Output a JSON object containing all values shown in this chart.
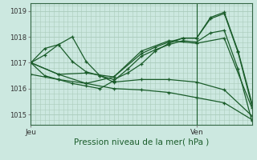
{
  "xlabel": "Pression niveau de la mer( hPa )",
  "bg_color": "#cce8e0",
  "grid_color": "#aaccbb",
  "line_color": "#1a5c2a",
  "ylim": [
    1014.6,
    1019.3
  ],
  "xlim": [
    0,
    48
  ],
  "xticks": [
    0,
    36
  ],
  "xtick_labels": [
    "Jeu",
    "Ven"
  ],
  "yticks": [
    1015,
    1016,
    1017,
    1018,
    1019
  ],
  "vline_x": 36,
  "series": [
    {
      "x": [
        0,
        3,
        6,
        9,
        12,
        15,
        18,
        21,
        24,
        27,
        30,
        33,
        36,
        39,
        42,
        45,
        48
      ],
      "y": [
        1017.0,
        1017.55,
        1017.7,
        1017.05,
        1016.65,
        1016.5,
        1016.35,
        1016.6,
        1016.95,
        1017.45,
        1017.75,
        1017.95,
        1017.95,
        1018.75,
        1018.95,
        1017.45,
        1015.45
      ]
    },
    {
      "x": [
        0,
        3,
        6,
        9,
        12,
        15,
        18,
        21,
        24,
        27,
        30,
        33,
        36,
        39,
        42,
        45,
        48
      ],
      "y": [
        1017.0,
        1016.5,
        1016.35,
        1016.2,
        1016.1,
        1016.0,
        1016.3,
        1016.75,
        1017.25,
        1017.5,
        1017.7,
        1017.85,
        1017.8,
        1018.15,
        1018.25,
        1016.75,
        1014.75
      ]
    },
    {
      "x": [
        0,
        6,
        12,
        18,
        24,
        27,
        30,
        33,
        36,
        39,
        42,
        45,
        48
      ],
      "y": [
        1017.0,
        1016.55,
        1016.2,
        1016.45,
        1017.35,
        1017.6,
        1017.8,
        1017.95,
        1017.95,
        1018.7,
        1018.9,
        1017.4,
        1015.35
      ]
    },
    {
      "x": [
        0,
        6,
        12,
        18,
        24,
        30,
        36,
        42,
        48
      ],
      "y": [
        1017.0,
        1016.55,
        1016.6,
        1016.45,
        1017.45,
        1017.85,
        1017.75,
        1017.95,
        1015.25
      ]
    },
    {
      "x": [
        0,
        3,
        6,
        9,
        12,
        15,
        18,
        24,
        30,
        36,
        42,
        48
      ],
      "y": [
        1017.0,
        1017.3,
        1017.7,
        1018.0,
        1017.05,
        1016.5,
        1016.25,
        1016.35,
        1016.35,
        1016.25,
        1015.95,
        1014.95
      ]
    },
    {
      "x": [
        0,
        6,
        12,
        18,
        24,
        30,
        36,
        42,
        48
      ],
      "y": [
        1016.55,
        1016.35,
        1016.2,
        1016.0,
        1015.95,
        1015.85,
        1015.65,
        1015.45,
        1014.8
      ]
    }
  ],
  "marker": "+",
  "markersize": 3.5,
  "linewidth": 0.9
}
